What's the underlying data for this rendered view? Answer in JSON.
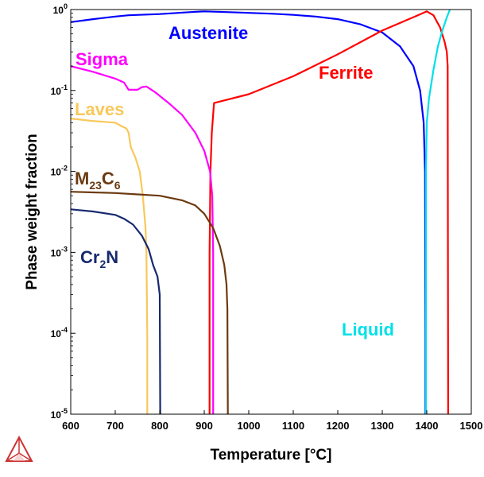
{
  "chart_data": {
    "type": "line",
    "xlabel": "Temperature [°C]",
    "ylabel": "Phase weight fraction",
    "xlim": [
      600,
      1500
    ],
    "ylim": [
      1e-05,
      1
    ],
    "yscale": "log",
    "grid": false,
    "x_ticks": [
      600,
      700,
      800,
      900,
      1000,
      1100,
      1200,
      1300,
      1400,
      1500
    ],
    "y_ticks": [
      {
        "value": 1e-05,
        "base": "10",
        "exp": "-5"
      },
      {
        "value": 0.0001,
        "base": "10",
        "exp": "-4"
      },
      {
        "value": 0.001,
        "base": "10",
        "exp": "-3"
      },
      {
        "value": 0.01,
        "base": "10",
        "exp": "-2"
      },
      {
        "value": 0.1,
        "base": "10",
        "exp": "-1"
      },
      {
        "value": 1,
        "base": "10",
        "exp": "0"
      }
    ],
    "series": [
      {
        "name": "Austenite",
        "label_parts": [
          {
            "text": "Austenite"
          }
        ],
        "color": "#0000ff",
        "points": [
          [
            600,
            0.7
          ],
          [
            650,
            0.76
          ],
          [
            700,
            0.82
          ],
          [
            730,
            0.85
          ],
          [
            800,
            0.88
          ],
          [
            870,
            0.93
          ],
          [
            900,
            0.95
          ],
          [
            950,
            0.93
          ],
          [
            1000,
            0.91
          ],
          [
            1050,
            0.89
          ],
          [
            1100,
            0.86
          ],
          [
            1150,
            0.82
          ],
          [
            1200,
            0.76
          ],
          [
            1250,
            0.66
          ],
          [
            1300,
            0.52
          ],
          [
            1340,
            0.35
          ],
          [
            1370,
            0.2
          ],
          [
            1385,
            0.1
          ],
          [
            1393,
            0.04
          ],
          [
            1396,
            0.01
          ],
          [
            1397,
            0.0001
          ],
          [
            1397,
            1e-05
          ]
        ]
      },
      {
        "name": "Ferrite",
        "label_parts": [
          {
            "text": "Ferrite"
          }
        ],
        "color": "#ff0000",
        "points": [
          [
            912,
            1e-05
          ],
          [
            912,
            0.001
          ],
          [
            914,
            0.01
          ],
          [
            917,
            0.03
          ],
          [
            922,
            0.07
          ],
          [
            1000,
            0.09
          ],
          [
            1100,
            0.15
          ],
          [
            1200,
            0.28
          ],
          [
            1300,
            0.55
          ],
          [
            1380,
            0.85
          ],
          [
            1400,
            0.95
          ],
          [
            1415,
            0.85
          ],
          [
            1430,
            0.6
          ],
          [
            1440,
            0.4
          ],
          [
            1445,
            0.3
          ],
          [
            1447,
            0.2
          ],
          [
            1448,
            1e-05
          ]
        ]
      },
      {
        "name": "Sigma",
        "label_parts": [
          {
            "text": "Sigma"
          }
        ],
        "color": "#ff00ff",
        "points": [
          [
            600,
            0.2
          ],
          [
            650,
            0.17
          ],
          [
            700,
            0.14
          ],
          [
            720,
            0.125
          ],
          [
            730,
            0.102
          ],
          [
            750,
            0.102
          ],
          [
            760,
            0.11
          ],
          [
            770,
            0.112
          ],
          [
            790,
            0.095
          ],
          [
            820,
            0.07
          ],
          [
            850,
            0.05
          ],
          [
            880,
            0.03
          ],
          [
            900,
            0.018
          ],
          [
            913,
            0.01
          ],
          [
            918,
            0.005
          ],
          [
            920,
            0.001
          ],
          [
            920,
            1e-05
          ]
        ]
      },
      {
        "name": "Laves",
        "label_parts": [
          {
            "text": "Laves"
          }
        ],
        "color": "#f8c85a",
        "points": [
          [
            600,
            0.045
          ],
          [
            650,
            0.042
          ],
          [
            700,
            0.04
          ],
          [
            715,
            0.036
          ],
          [
            725,
            0.034
          ],
          [
            730,
            0.03
          ],
          [
            735,
            0.02
          ],
          [
            745,
            0.015
          ],
          [
            755,
            0.01
          ],
          [
            762,
            0.005
          ],
          [
            768,
            0.002
          ],
          [
            770,
            0.001
          ],
          [
            772,
            0.0001
          ],
          [
            772,
            1e-05
          ]
        ]
      },
      {
        "name": "M23C6",
        "label_parts": [
          {
            "text": "M"
          },
          {
            "text": "23",
            "sub": true
          },
          {
            "text": "C"
          },
          {
            "text": "6",
            "sub": true
          }
        ],
        "color": "#6b3a10",
        "points": [
          [
            600,
            0.0056
          ],
          [
            650,
            0.0055
          ],
          [
            700,
            0.0054
          ],
          [
            750,
            0.0052
          ],
          [
            800,
            0.005
          ],
          [
            850,
            0.0044
          ],
          [
            880,
            0.0038
          ],
          [
            900,
            0.003
          ],
          [
            920,
            0.002
          ],
          [
            935,
            0.0012
          ],
          [
            945,
            0.0007
          ],
          [
            950,
            0.0004
          ],
          [
            952,
            0.0002
          ],
          [
            953,
            1e-05
          ]
        ]
      },
      {
        "name": "Cr2N",
        "label_parts": [
          {
            "text": "Cr"
          },
          {
            "text": "2",
            "sub": true
          },
          {
            "text": "N"
          }
        ],
        "color": "#17296e",
        "points": [
          [
            600,
            0.0034
          ],
          [
            650,
            0.0032
          ],
          [
            700,
            0.0029
          ],
          [
            720,
            0.0026
          ],
          [
            740,
            0.0022
          ],
          [
            760,
            0.0016
          ],
          [
            775,
            0.0011
          ],
          [
            785,
            0.0007
          ],
          [
            795,
            0.0005
          ],
          [
            800,
            0.0003
          ],
          [
            801,
            1e-05
          ]
        ]
      },
      {
        "name": "Liquid",
        "label_parts": [
          {
            "text": "Liquid"
          }
        ],
        "color": "#00e0e8",
        "points": [
          [
            1398,
            1e-05
          ],
          [
            1398,
            0.01
          ],
          [
            1400,
            0.04
          ],
          [
            1405,
            0.08
          ],
          [
            1415,
            0.18
          ],
          [
            1425,
            0.35
          ],
          [
            1435,
            0.55
          ],
          [
            1445,
            0.8
          ],
          [
            1452,
            1.0
          ]
        ]
      }
    ]
  }
}
